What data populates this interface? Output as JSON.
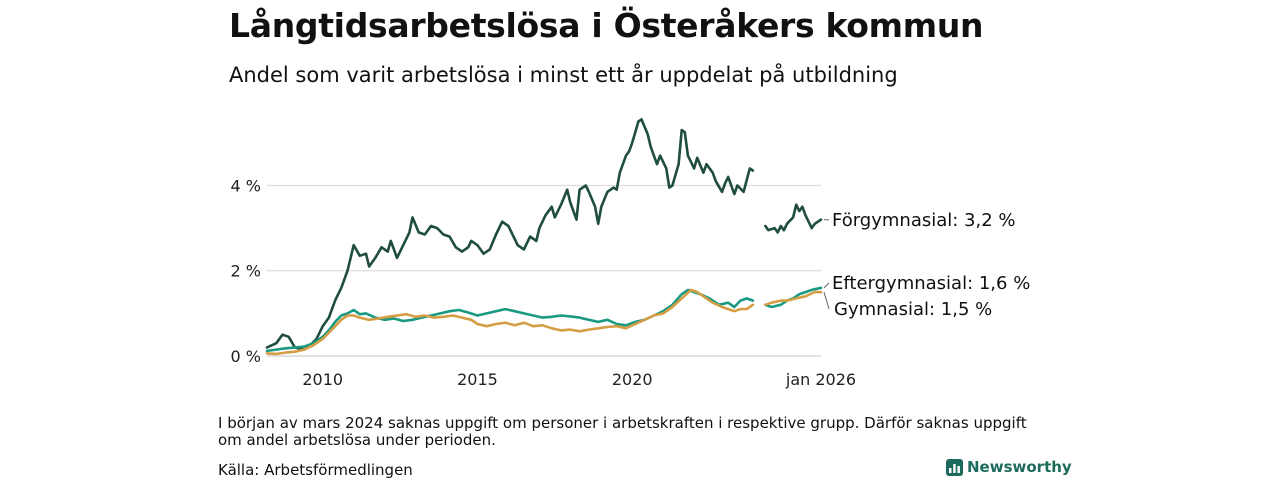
{
  "title": "Långtidsarbetslösa i Österåkers kommun",
  "subtitle": "Andel som varit arbetslösa i minst ett år uppdelat på utbildning",
  "note": "I början av mars 2024 saknas uppgift om personer i arbetskraften i respektive grupp. Därför saknas uppgift om andel arbetslösa under perioden.",
  "source": "Källa: Arbetsförmedlingen",
  "brand": "Newsworthy",
  "colors": {
    "forgymnasial": "#1f4d40",
    "eftergymnasial": "#1a9a83",
    "gymnasial": "#d59e45",
    "gridline": "#dedede",
    "brand": "#1d6b5c"
  },
  "chart_data": {
    "type": "line",
    "title": "Långtidsarbetslösa i Österåkers kommun",
    "xlabel": "",
    "ylabel": "",
    "xlim": [
      2008.2,
      2026.1
    ],
    "ylim": [
      0,
      5.7
    ],
    "x_ticks": [
      {
        "value": 2010,
        "label": "2010"
      },
      {
        "value": 2015,
        "label": "2015"
      },
      {
        "value": 2020,
        "label": "2020"
      },
      {
        "value": 2026.1,
        "label": "jan 2026"
      }
    ],
    "y_ticks": [
      {
        "value": 0,
        "label": "0 %"
      },
      {
        "value": 2,
        "label": "2 %"
      },
      {
        "value": 4,
        "label": "4 %"
      }
    ],
    "gap_note": "Data missing from about Nov 2023 to Apr 2024",
    "series": [
      {
        "name": "Förgymnasial",
        "end_label": "Förgymnasial: 3,2 %",
        "color_key": "forgymnasial",
        "segments": [
          [
            [
              2008.2,
              0.2
            ],
            [
              2008.5,
              0.3
            ],
            [
              2008.7,
              0.5
            ],
            [
              2008.9,
              0.45
            ],
            [
              2009.1,
              0.2
            ],
            [
              2009.4,
              0.15
            ],
            [
              2009.6,
              0.25
            ],
            [
              2009.8,
              0.4
            ],
            [
              2010.0,
              0.7
            ],
            [
              2010.2,
              0.9
            ],
            [
              2010.4,
              1.3
            ],
            [
              2010.6,
              1.6
            ],
            [
              2010.8,
              2.0
            ],
            [
              2010.9,
              2.3
            ],
            [
              2011.0,
              2.6
            ],
            [
              2011.2,
              2.35
            ],
            [
              2011.4,
              2.4
            ],
            [
              2011.5,
              2.1
            ],
            [
              2011.7,
              2.3
            ],
            [
              2011.9,
              2.55
            ],
            [
              2012.1,
              2.45
            ],
            [
              2012.2,
              2.7
            ],
            [
              2012.4,
              2.3
            ],
            [
              2012.6,
              2.6
            ],
            [
              2012.8,
              2.9
            ],
            [
              2012.9,
              3.25
            ],
            [
              2013.1,
              2.9
            ],
            [
              2013.3,
              2.85
            ],
            [
              2013.5,
              3.05
            ],
            [
              2013.7,
              3.0
            ],
            [
              2013.9,
              2.85
            ],
            [
              2014.1,
              2.8
            ],
            [
              2014.3,
              2.55
            ],
            [
              2014.5,
              2.45
            ],
            [
              2014.7,
              2.55
            ],
            [
              2014.8,
              2.7
            ],
            [
              2015.0,
              2.6
            ],
            [
              2015.2,
              2.4
            ],
            [
              2015.4,
              2.5
            ],
            [
              2015.6,
              2.85
            ],
            [
              2015.8,
              3.15
            ],
            [
              2016.0,
              3.05
            ],
            [
              2016.2,
              2.75
            ],
            [
              2016.3,
              2.6
            ],
            [
              2016.5,
              2.5
            ],
            [
              2016.7,
              2.8
            ],
            [
              2016.9,
              2.7
            ],
            [
              2017.0,
              3.0
            ],
            [
              2017.2,
              3.3
            ],
            [
              2017.4,
              3.5
            ],
            [
              2017.5,
              3.25
            ],
            [
              2017.7,
              3.55
            ],
            [
              2017.9,
              3.9
            ],
            [
              2018.0,
              3.6
            ],
            [
              2018.2,
              3.2
            ],
            [
              2018.3,
              3.9
            ],
            [
              2018.5,
              4.0
            ],
            [
              2018.6,
              3.85
            ],
            [
              2018.8,
              3.5
            ],
            [
              2018.9,
              3.1
            ],
            [
              2019.0,
              3.5
            ],
            [
              2019.2,
              3.85
            ],
            [
              2019.4,
              3.95
            ],
            [
              2019.5,
              3.9
            ],
            [
              2019.6,
              4.3
            ],
            [
              2019.8,
              4.7
            ],
            [
              2019.9,
              4.8
            ],
            [
              2020.0,
              5.0
            ],
            [
              2020.2,
              5.5
            ],
            [
              2020.3,
              5.55
            ],
            [
              2020.5,
              5.2
            ],
            [
              2020.6,
              4.9
            ],
            [
              2020.8,
              4.5
            ],
            [
              2020.9,
              4.7
            ],
            [
              2021.1,
              4.4
            ],
            [
              2021.2,
              3.95
            ],
            [
              2021.3,
              4.0
            ],
            [
              2021.5,
              4.5
            ],
            [
              2021.6,
              5.3
            ],
            [
              2021.7,
              5.25
            ],
            [
              2021.8,
              4.7
            ],
            [
              2022.0,
              4.4
            ],
            [
              2022.1,
              4.65
            ],
            [
              2022.3,
              4.3
            ],
            [
              2022.4,
              4.5
            ],
            [
              2022.6,
              4.3
            ],
            [
              2022.7,
              4.1
            ],
            [
              2022.9,
              3.85
            ],
            [
              2023.0,
              4.05
            ],
            [
              2023.1,
              4.2
            ],
            [
              2023.3,
              3.8
            ],
            [
              2023.4,
              4.0
            ],
            [
              2023.6,
              3.85
            ],
            [
              2023.8,
              4.4
            ],
            [
              2023.9,
              4.35
            ]
          ],
          [
            [
              2024.3,
              3.05
            ],
            [
              2024.4,
              2.95
            ],
            [
              2024.6,
              3.0
            ],
            [
              2024.7,
              2.9
            ],
            [
              2024.8,
              3.05
            ],
            [
              2024.9,
              2.95
            ],
            [
              2025.0,
              3.1
            ],
            [
              2025.2,
              3.25
            ],
            [
              2025.3,
              3.55
            ],
            [
              2025.4,
              3.4
            ],
            [
              2025.5,
              3.5
            ],
            [
              2025.6,
              3.3
            ],
            [
              2025.7,
              3.15
            ],
            [
              2025.8,
              3.0
            ],
            [
              2025.9,
              3.1
            ],
            [
              2026.1,
              3.2
            ]
          ]
        ]
      },
      {
        "name": "Eftergymnasial",
        "end_label": "Eftergymnasial: 1,6 %",
        "color_key": "eftergymnasial",
        "segments": [
          [
            [
              2008.2,
              0.12
            ],
            [
              2008.5,
              0.15
            ],
            [
              2008.8,
              0.18
            ],
            [
              2009.1,
              0.2
            ],
            [
              2009.4,
              0.22
            ],
            [
              2009.7,
              0.3
            ],
            [
              2010.0,
              0.45
            ],
            [
              2010.2,
              0.6
            ],
            [
              2010.4,
              0.8
            ],
            [
              2010.6,
              0.95
            ],
            [
              2010.8,
              1.0
            ],
            [
              2011.0,
              1.08
            ],
            [
              2011.2,
              0.98
            ],
            [
              2011.4,
              1.0
            ],
            [
              2011.7,
              0.9
            ],
            [
              2012.0,
              0.85
            ],
            [
              2012.3,
              0.88
            ],
            [
              2012.6,
              0.82
            ],
            [
              2012.9,
              0.85
            ],
            [
              2013.2,
              0.9
            ],
            [
              2013.5,
              0.95
            ],
            [
              2013.8,
              1.0
            ],
            [
              2014.1,
              1.05
            ],
            [
              2014.4,
              1.08
            ],
            [
              2014.7,
              1.02
            ],
            [
              2015.0,
              0.95
            ],
            [
              2015.3,
              1.0
            ],
            [
              2015.6,
              1.05
            ],
            [
              2015.9,
              1.1
            ],
            [
              2016.2,
              1.05
            ],
            [
              2016.5,
              1.0
            ],
            [
              2016.8,
              0.95
            ],
            [
              2017.1,
              0.9
            ],
            [
              2017.4,
              0.92
            ],
            [
              2017.7,
              0.95
            ],
            [
              2018.0,
              0.93
            ],
            [
              2018.3,
              0.9
            ],
            [
              2018.6,
              0.85
            ],
            [
              2018.9,
              0.8
            ],
            [
              2019.2,
              0.85
            ],
            [
              2019.5,
              0.75
            ],
            [
              2019.8,
              0.72
            ],
            [
              2020.1,
              0.8
            ],
            [
              2020.4,
              0.85
            ],
            [
              2020.7,
              0.95
            ],
            [
              2021.0,
              1.05
            ],
            [
              2021.3,
              1.2
            ],
            [
              2021.6,
              1.45
            ],
            [
              2021.8,
              1.55
            ],
            [
              2022.0,
              1.5
            ],
            [
              2022.2,
              1.45
            ],
            [
              2022.5,
              1.35
            ],
            [
              2022.8,
              1.2
            ],
            [
              2023.1,
              1.25
            ],
            [
              2023.3,
              1.15
            ],
            [
              2023.5,
              1.3
            ],
            [
              2023.7,
              1.35
            ],
            [
              2023.9,
              1.3
            ]
          ],
          [
            [
              2024.3,
              1.2
            ],
            [
              2024.5,
              1.15
            ],
            [
              2024.8,
              1.2
            ],
            [
              2025.0,
              1.3
            ],
            [
              2025.2,
              1.35
            ],
            [
              2025.4,
              1.45
            ],
            [
              2025.6,
              1.5
            ],
            [
              2025.8,
              1.55
            ],
            [
              2026.1,
              1.6
            ]
          ]
        ]
      },
      {
        "name": "Gymnasial",
        "end_label": "Gymnasial: 1,5 %",
        "color_key": "gymnasial",
        "segments": [
          [
            [
              2008.2,
              0.06
            ],
            [
              2008.5,
              0.05
            ],
            [
              2008.8,
              0.08
            ],
            [
              2009.1,
              0.1
            ],
            [
              2009.4,
              0.15
            ],
            [
              2009.7,
              0.25
            ],
            [
              2010.0,
              0.4
            ],
            [
              2010.2,
              0.55
            ],
            [
              2010.4,
              0.7
            ],
            [
              2010.6,
              0.85
            ],
            [
              2010.8,
              0.95
            ],
            [
              2011.0,
              0.95
            ],
            [
              2011.2,
              0.9
            ],
            [
              2011.5,
              0.85
            ],
            [
              2011.8,
              0.88
            ],
            [
              2012.1,
              0.92
            ],
            [
              2012.4,
              0.95
            ],
            [
              2012.7,
              0.98
            ],
            [
              2013.0,
              0.92
            ],
            [
              2013.3,
              0.95
            ],
            [
              2013.6,
              0.9
            ],
            [
              2013.9,
              0.92
            ],
            [
              2014.2,
              0.95
            ],
            [
              2014.5,
              0.9
            ],
            [
              2014.8,
              0.85
            ],
            [
              2015.0,
              0.75
            ],
            [
              2015.3,
              0.7
            ],
            [
              2015.6,
              0.75
            ],
            [
              2015.9,
              0.78
            ],
            [
              2016.2,
              0.72
            ],
            [
              2016.5,
              0.78
            ],
            [
              2016.8,
              0.7
            ],
            [
              2017.1,
              0.72
            ],
            [
              2017.4,
              0.65
            ],
            [
              2017.7,
              0.6
            ],
            [
              2018.0,
              0.62
            ],
            [
              2018.3,
              0.58
            ],
            [
              2018.6,
              0.62
            ],
            [
              2018.9,
              0.65
            ],
            [
              2019.2,
              0.68
            ],
            [
              2019.5,
              0.7
            ],
            [
              2019.8,
              0.65
            ],
            [
              2020.1,
              0.75
            ],
            [
              2020.4,
              0.85
            ],
            [
              2020.7,
              0.95
            ],
            [
              2021.0,
              1.0
            ],
            [
              2021.3,
              1.15
            ],
            [
              2021.6,
              1.35
            ],
            [
              2021.9,
              1.55
            ],
            [
              2022.1,
              1.5
            ],
            [
              2022.3,
              1.4
            ],
            [
              2022.6,
              1.25
            ],
            [
              2022.9,
              1.15
            ],
            [
              2023.1,
              1.1
            ],
            [
              2023.3,
              1.05
            ],
            [
              2023.5,
              1.1
            ],
            [
              2023.7,
              1.1
            ],
            [
              2023.9,
              1.2
            ]
          ],
          [
            [
              2024.3,
              1.2
            ],
            [
              2024.5,
              1.25
            ],
            [
              2024.8,
              1.3
            ],
            [
              2025.0,
              1.3
            ],
            [
              2025.3,
              1.35
            ],
            [
              2025.6,
              1.4
            ],
            [
              2025.9,
              1.5
            ],
            [
              2026.1,
              1.5
            ]
          ]
        ]
      }
    ]
  }
}
